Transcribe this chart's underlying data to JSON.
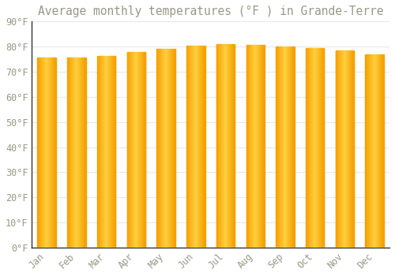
{
  "title": "Average monthly temperatures (°F ) in Grande-Terre",
  "months": [
    "Jan",
    "Feb",
    "Mar",
    "Apr",
    "May",
    "Jun",
    "Jul",
    "Aug",
    "Sep",
    "Oct",
    "Nov",
    "Dec"
  ],
  "values": [
    75.7,
    75.7,
    76.3,
    77.9,
    79.0,
    80.4,
    81.0,
    80.6,
    80.1,
    79.5,
    78.4,
    76.8
  ],
  "bar_color_center": "#FFD040",
  "bar_color_edge": "#F5A000",
  "background_color": "#FFFFFF",
  "grid_color": "#E8E8E8",
  "text_color": "#999988",
  "axis_color": "#333333",
  "ylim": [
    0,
    90
  ],
  "ytick_step": 10,
  "title_fontsize": 10.5,
  "tick_fontsize": 8.5,
  "font_family": "monospace"
}
